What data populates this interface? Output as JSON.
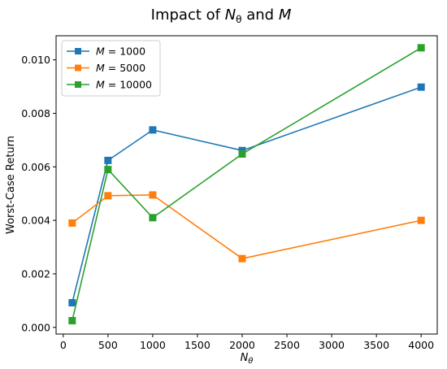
{
  "chart_data": {
    "type": "line",
    "title": "Impact of N_θ and M",
    "title_parts": {
      "prefix": "Impact of ",
      "var1": "N",
      "var1_sub": "θ",
      "mid": " and ",
      "var2": "M"
    },
    "xlabel": "N_θ",
    "xlabel_parts": {
      "var": "N",
      "sub": "θ"
    },
    "ylabel": "Worst-Case Return",
    "xlim": [
      -80,
      4180
    ],
    "ylim": [
      -0.00025,
      0.0109
    ],
    "xticks": [
      0,
      500,
      1000,
      1500,
      2000,
      2500,
      3000,
      3500,
      4000
    ],
    "yticks": [
      0.0,
      0.002,
      0.004,
      0.006,
      0.008,
      0.01
    ],
    "ytick_labels": [
      "0.000",
      "0.002",
      "0.004",
      "0.006",
      "0.008",
      "0.010"
    ],
    "grid": false,
    "legend_position": "upper left",
    "x": [
      100,
      500,
      1000,
      2000,
      4000
    ],
    "series": [
      {
        "name": "M = 1000",
        "legend_var": "M",
        "legend_value": " = 1000",
        "color": "#1f77b4",
        "marker": "square",
        "values": [
          0.00092,
          0.00624,
          0.00738,
          0.00661,
          0.00898
        ]
      },
      {
        "name": "M = 5000",
        "legend_var": "M",
        "legend_value": " = 5000",
        "color": "#ff7f0e",
        "marker": "square",
        "values": [
          0.0039,
          0.00492,
          0.00495,
          0.00257,
          0.004
        ]
      },
      {
        "name": "M = 10000",
        "legend_var": "M",
        "legend_value": " = 10000",
        "color": "#2ca02c",
        "marker": "square",
        "values": [
          0.00025,
          0.0059,
          0.0041,
          0.00648,
          0.01045
        ]
      }
    ]
  }
}
